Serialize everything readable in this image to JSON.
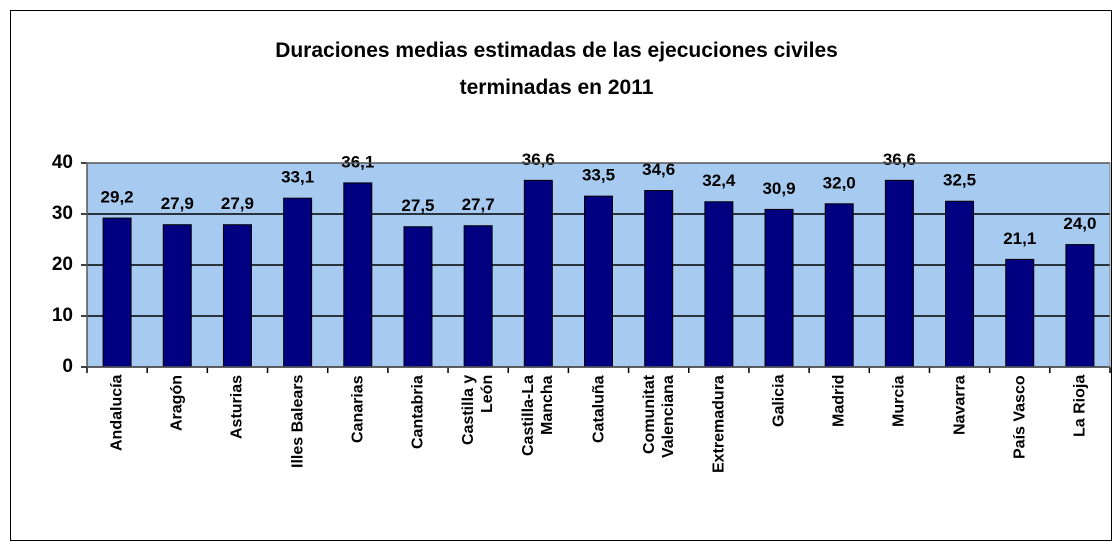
{
  "chart_data": {
    "type": "bar",
    "title": "Duraciones medias estimadas de las ejecuciones civiles\nterminadas en 2011",
    "categories": [
      "Andalucía",
      "Aragón",
      "Asturias",
      "Illes Balears",
      "Canarias",
      "Cantabria",
      "Castilla y\nLeón",
      "Castilla-La\nMancha",
      "Cataluña",
      "Comunitat\nValenciana",
      "Extremadura",
      "Galicia",
      "Madrid",
      "Murcia",
      "Navarra",
      "País Vasco",
      "La Rioja"
    ],
    "values": [
      29.2,
      27.9,
      27.9,
      33.1,
      36.1,
      27.5,
      27.7,
      36.6,
      33.5,
      34.6,
      32.4,
      30.9,
      32.0,
      36.6,
      32.5,
      21.1,
      24.0
    ],
    "value_labels": [
      "29,2",
      "27,9",
      "27,9",
      "33,1",
      "36,1",
      "27,5",
      "27,7",
      "36,6",
      "33,5",
      "34,6",
      "32,4",
      "30,9",
      "32,0",
      "36,6",
      "32,5",
      "21,1",
      "24,0"
    ],
    "color": "#000080",
    "background": "#a6caf0",
    "ylim": [
      0,
      40
    ],
    "yticks": [
      0,
      10,
      20,
      30,
      40
    ],
    "grid": true
  }
}
